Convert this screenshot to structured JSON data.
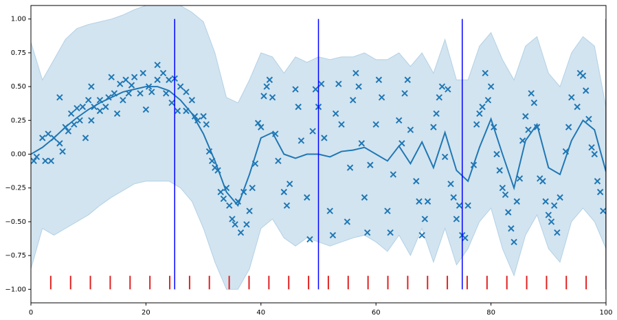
{
  "chart_data": {
    "type": "gp",
    "xlim": [
      0,
      100
    ],
    "ylim": [
      -1.1,
      1.1
    ],
    "xticks": [
      0,
      20,
      40,
      60,
      80,
      100
    ],
    "yticks": [
      {
        "value": -1,
        "label": "−1.00"
      },
      {
        "value": -0.75,
        "label": "−0.75"
      },
      {
        "value": -0.5,
        "label": "−0.50"
      },
      {
        "value": -0.25,
        "label": "−0.25"
      },
      {
        "value": 0,
        "label": "0.00"
      },
      {
        "value": 0.25,
        "label": "0.25"
      },
      {
        "value": 0.5,
        "label": "0.50"
      },
      {
        "value": 0.75,
        "label": "0.75"
      },
      {
        "value": 1,
        "label": "1.00"
      }
    ],
    "color": "#1f77b4",
    "x": [
      0,
      2,
      4,
      6,
      8,
      10,
      12,
      14,
      16,
      18,
      20,
      22,
      24,
      26,
      28,
      30,
      32,
      34,
      36,
      38,
      40,
      42,
      44,
      46,
      48,
      50,
      52,
      54,
      56,
      58,
      60,
      62,
      64,
      66,
      68,
      70,
      72,
      74,
      76,
      78,
      80,
      82,
      84,
      86,
      88,
      90,
      92,
      94,
      96,
      98,
      100
    ],
    "mean": [
      0,
      0.05,
      0.12,
      0.2,
      0.27,
      0.33,
      0.38,
      0.42,
      0.46,
      0.48,
      0.5,
      0.5,
      0.47,
      0.4,
      0.3,
      0.15,
      -0.05,
      -0.28,
      -0.38,
      -0.15,
      0.12,
      0.16,
      0,
      -0.03,
      0,
      0,
      -0.02,
      0.02,
      0.03,
      0.05,
      0,
      -0.05,
      0.06,
      -0.07,
      0.09,
      -0.1,
      0.16,
      -0.12,
      -0.2,
      0.05,
      0.26,
      0,
      -0.25,
      0.1,
      0.22,
      -0.1,
      -0.15,
      0.1,
      0.25,
      0.18,
      -0.13
    ],
    "upper": [
      0.83,
      0.55,
      0.7,
      0.85,
      0.93,
      0.96,
      0.98,
      1,
      1.03,
      1.07,
      1.1,
      1.1,
      1.1,
      1.1,
      1.05,
      0.98,
      0.75,
      0.42,
      0.38,
      0.55,
      0.75,
      0.72,
      0.6,
      0.72,
      0.68,
      0.72,
      0.7,
      0.72,
      0.72,
      0.75,
      0.7,
      0.7,
      0.75,
      0.65,
      0.75,
      0.6,
      0.85,
      0.55,
      0.55,
      0.8,
      0.9,
      0.7,
      0.55,
      0.8,
      0.87,
      0.6,
      0.5,
      0.75,
      0.87,
      0.8,
      0.35
    ],
    "lower": [
      -0.85,
      -0.55,
      -0.6,
      -0.55,
      -0.5,
      -0.45,
      -0.38,
      -0.32,
      -0.27,
      -0.22,
      -0.2,
      -0.2,
      -0.2,
      -0.25,
      -0.35,
      -0.55,
      -0.8,
      -1,
      -1,
      -0.85,
      -0.55,
      -0.48,
      -0.62,
      -0.68,
      -0.62,
      -0.65,
      -0.68,
      -0.65,
      -0.62,
      -0.6,
      -0.65,
      -0.72,
      -0.6,
      -0.75,
      -0.55,
      -0.8,
      -0.55,
      -0.82,
      -0.7,
      -0.5,
      -0.4,
      -0.7,
      -0.9,
      -0.6,
      -0.45,
      -0.7,
      -0.8,
      -0.5,
      -0.4,
      -0.5,
      -0.7
    ],
    "points": [
      [
        0.5,
        -0.05
      ],
      [
        1,
        -0.02
      ],
      [
        2,
        0.12
      ],
      [
        2.5,
        -0.05
      ],
      [
        3,
        0.15
      ],
      [
        3.5,
        -0.05
      ],
      [
        4,
        0.12
      ],
      [
        5,
        0.08
      ],
      [
        5.5,
        0.02
      ],
      [
        5,
        0.42
      ],
      [
        6,
        0.2
      ],
      [
        6.5,
        0.17
      ],
      [
        7,
        0.3
      ],
      [
        7.5,
        0.22
      ],
      [
        8,
        0.34
      ],
      [
        8.5,
        0.25
      ],
      [
        9,
        0.35
      ],
      [
        9.5,
        0.12
      ],
      [
        10,
        0.4
      ],
      [
        10.5,
        0.25
      ],
      [
        10.5,
        0.5
      ],
      [
        11,
        0.35
      ],
      [
        12,
        0.32
      ],
      [
        12,
        0.4
      ],
      [
        13,
        0.35
      ],
      [
        13.5,
        0.42
      ],
      [
        14,
        0.57
      ],
      [
        14.5,
        0.45
      ],
      [
        15,
        0.3
      ],
      [
        15.5,
        0.52
      ],
      [
        16,
        0.4
      ],
      [
        16.5,
        0.55
      ],
      [
        17,
        0.45
      ],
      [
        17.5,
        0.51
      ],
      [
        18,
        0.57
      ],
      [
        19,
        0.45
      ],
      [
        19.5,
        0.6
      ],
      [
        20,
        0.33
      ],
      [
        20.5,
        0.5
      ],
      [
        21,
        0.46
      ],
      [
        22,
        0.55
      ],
      [
        22,
        0.66
      ],
      [
        23,
        0.6
      ],
      [
        23.5,
        0.45
      ],
      [
        24,
        0.55
      ],
      [
        24.5,
        0.38
      ],
      [
        25,
        0.56
      ],
      [
        25.5,
        0.32
      ],
      [
        26,
        0.5
      ],
      [
        27,
        0.46
      ],
      [
        27,
        0.32
      ],
      [
        28,
        0.4
      ],
      [
        28.5,
        0.28
      ],
      [
        29,
        0.25
      ],
      [
        30,
        0.28
      ],
      [
        30.5,
        0.22
      ],
      [
        31,
        0.02
      ],
      [
        31.5,
        -0.05
      ],
      [
        32,
        -0.1
      ],
      [
        32.5,
        -0.12
      ],
      [
        33,
        -0.28
      ],
      [
        33.5,
        -0.33
      ],
      [
        34,
        -0.25
      ],
      [
        34.5,
        -0.38
      ],
      [
        35,
        -0.48
      ],
      [
        35.5,
        -0.52
      ],
      [
        36,
        -0.35
      ],
      [
        36.5,
        -0.58
      ],
      [
        37,
        -0.28
      ],
      [
        37.5,
        -0.52
      ],
      [
        38,
        -0.42
      ],
      [
        38.5,
        -0.25
      ],
      [
        39,
        -0.07
      ],
      [
        39.5,
        0.23
      ],
      [
        40,
        0.2
      ],
      [
        40.5,
        0.43
      ],
      [
        41,
        0.5
      ],
      [
        41.5,
        0.55
      ],
      [
        42,
        0.42
      ],
      [
        42.5,
        0.15
      ],
      [
        43,
        -0.05
      ],
      [
        44,
        -0.28
      ],
      [
        44.5,
        -0.38
      ],
      [
        45,
        -0.22
      ],
      [
        46,
        0.48
      ],
      [
        46.5,
        0.35
      ],
      [
        47,
        0.1
      ],
      [
        48,
        -0.32
      ],
      [
        48.5,
        -0.63
      ],
      [
        49,
        0.17
      ],
      [
        49.5,
        0.48
      ],
      [
        50,
        0.35
      ],
      [
        50.5,
        0.52
      ],
      [
        51,
        0.12
      ],
      [
        52,
        -0.42
      ],
      [
        52.5,
        -0.6
      ],
      [
        53,
        0.3
      ],
      [
        53.5,
        0.52
      ],
      [
        54,
        0.22
      ],
      [
        55,
        -0.5
      ],
      [
        55.5,
        -0.1
      ],
      [
        56,
        0.4
      ],
      [
        56.5,
        0.6
      ],
      [
        57,
        0.5
      ],
      [
        57.5,
        0.08
      ],
      [
        58,
        -0.32
      ],
      [
        58.5,
        -0.58
      ],
      [
        59,
        -0.08
      ],
      [
        60,
        0.22
      ],
      [
        60.5,
        0.55
      ],
      [
        61,
        0.42
      ],
      [
        62,
        -0.42
      ],
      [
        62.5,
        -0.58
      ],
      [
        63,
        -0.15
      ],
      [
        64,
        0.25
      ],
      [
        64.5,
        0.08
      ],
      [
        65,
        0.45
      ],
      [
        65.5,
        0.55
      ],
      [
        66,
        0.18
      ],
      [
        67,
        -0.2
      ],
      [
        67.5,
        -0.35
      ],
      [
        68,
        -0.6
      ],
      [
        68.5,
        -0.48
      ],
      [
        69,
        -0.35
      ],
      [
        70,
        0.2
      ],
      [
        70.5,
        0.3
      ],
      [
        71,
        0.42
      ],
      [
        71.5,
        0.5
      ],
      [
        72,
        -0.02
      ],
      [
        72.5,
        0.48
      ],
      [
        73,
        -0.22
      ],
      [
        73.5,
        -0.32
      ],
      [
        74,
        -0.48
      ],
      [
        74.5,
        -0.38
      ],
      [
        75,
        -0.6
      ],
      [
        75.5,
        -0.62
      ],
      [
        76,
        -0.38
      ],
      [
        77,
        -0.08
      ],
      [
        77.5,
        0.22
      ],
      [
        78,
        0.3
      ],
      [
        78.5,
        0.35
      ],
      [
        79,
        0.6
      ],
      [
        79.5,
        0.4
      ],
      [
        80,
        0.5
      ],
      [
        80.5,
        0.2
      ],
      [
        81,
        0
      ],
      [
        81.5,
        -0.12
      ],
      [
        82,
        -0.25
      ],
      [
        82.5,
        -0.3
      ],
      [
        83,
        -0.43
      ],
      [
        83.5,
        -0.55
      ],
      [
        84,
        -0.65
      ],
      [
        84.5,
        -0.35
      ],
      [
        85,
        -0.18
      ],
      [
        85.5,
        0.1
      ],
      [
        86,
        0.28
      ],
      [
        86.5,
        0.18
      ],
      [
        87,
        0.45
      ],
      [
        87.5,
        0.38
      ],
      [
        88,
        0.2
      ],
      [
        88.5,
        -0.18
      ],
      [
        89,
        -0.2
      ],
      [
        89.5,
        -0.35
      ],
      [
        90,
        -0.45
      ],
      [
        90.5,
        -0.5
      ],
      [
        91,
        -0.38
      ],
      [
        91.5,
        -0.58
      ],
      [
        92,
        -0.32
      ],
      [
        93,
        0.02
      ],
      [
        93.5,
        0.2
      ],
      [
        94,
        0.42
      ],
      [
        95,
        0.35
      ],
      [
        95.5,
        0.6
      ],
      [
        96,
        0.58
      ],
      [
        96.5,
        0.47
      ],
      [
        97,
        0.26
      ],
      [
        97.5,
        0.05
      ],
      [
        98,
        0
      ],
      [
        98.5,
        -0.2
      ],
      [
        99,
        -0.28
      ],
      [
        99.5,
        -0.42
      ]
    ],
    "vlines": {
      "x": [
        25,
        50,
        75,
        100
      ],
      "ymin": -1,
      "ymax": 1,
      "color": "#0000ff"
    },
    "rug": {
      "x": [
        3.45,
        6.9,
        10.34,
        13.79,
        17.24,
        20.69,
        24.14,
        27.59,
        31.03,
        34.48,
        37.93,
        41.38,
        44.83,
        48.28,
        51.72,
        55.17,
        58.62,
        62.07,
        65.52,
        68.97,
        72.41,
        75.86,
        79.31,
        82.76,
        86.21,
        89.66,
        93.1,
        96.55
      ],
      "ymin": -1,
      "ymax": -0.9,
      "color": "#e02020"
    }
  }
}
